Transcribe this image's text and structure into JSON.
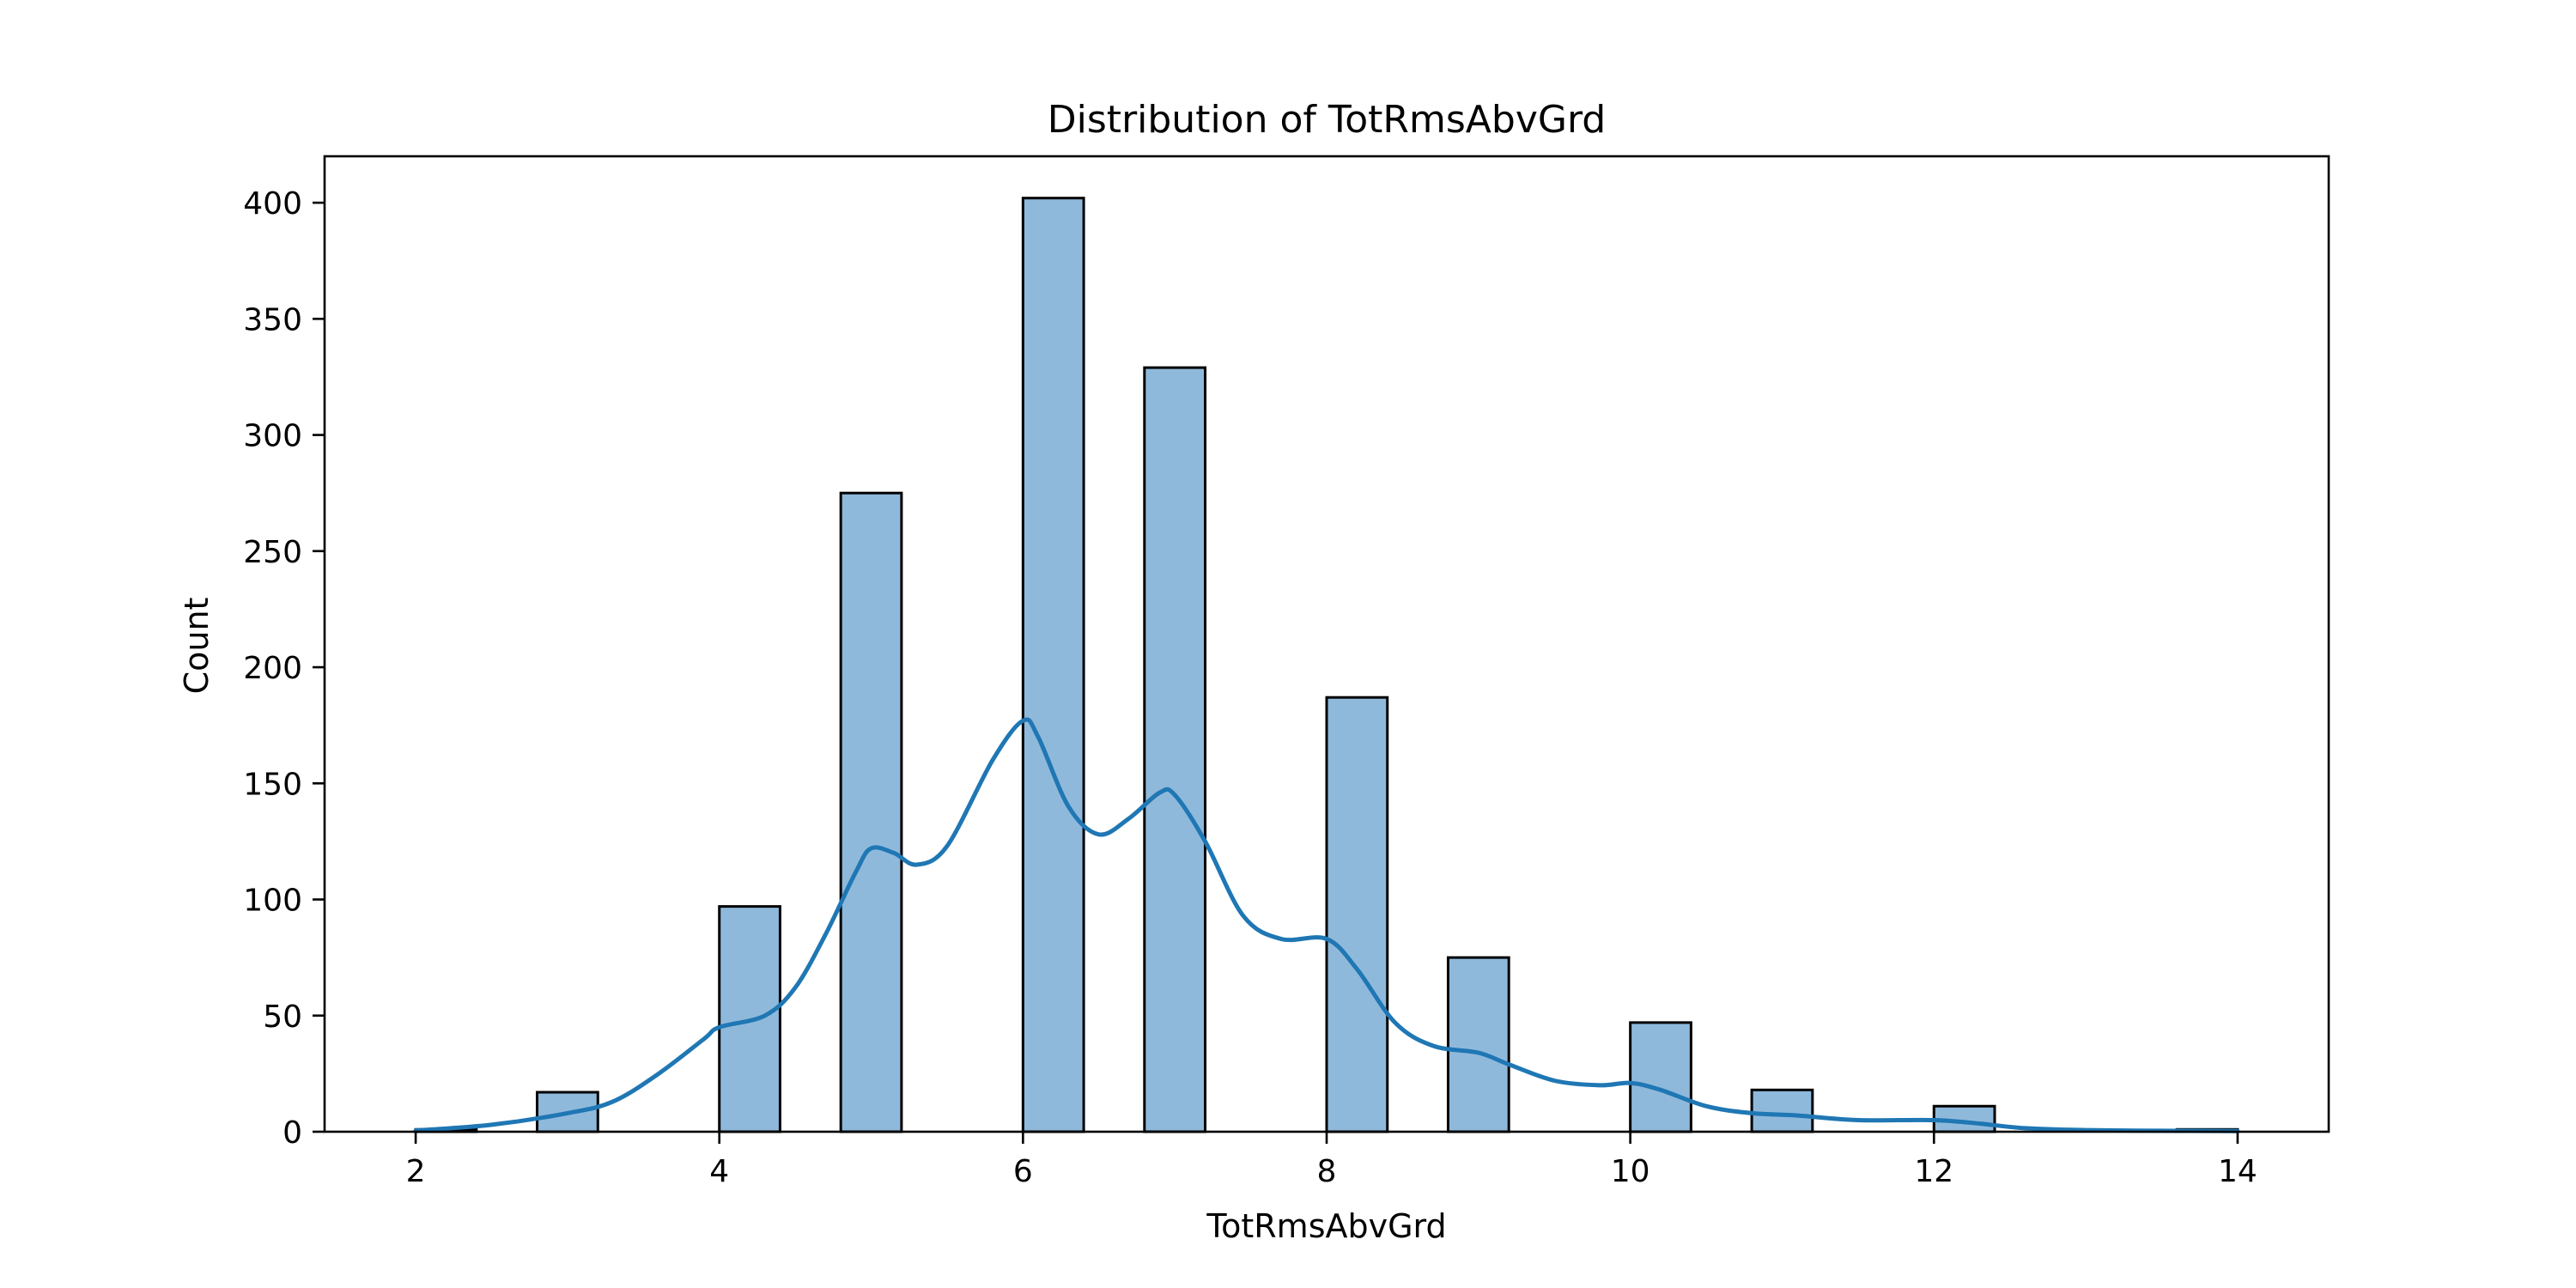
{
  "chart_data": {
    "type": "histogram",
    "title": "Distribution of TotRmsAbvGrd",
    "xlabel": "TotRmsAbvGrd",
    "ylabel": "Count",
    "xlim": [
      1.4,
      14.6
    ],
    "ylim": [
      0,
      420
    ],
    "x_ticks": [
      2,
      4,
      6,
      8,
      10,
      12,
      14
    ],
    "y_ticks": [
      0,
      50,
      100,
      150,
      200,
      250,
      300,
      350,
      400
    ],
    "bin_width": 0.4,
    "bins": [
      {
        "x0": 2.0,
        "x1": 2.4,
        "count": 1
      },
      {
        "x0": 2.8,
        "x1": 3.2,
        "count": 17
      },
      {
        "x0": 4.0,
        "x1": 4.4,
        "count": 97
      },
      {
        "x0": 4.8,
        "x1": 5.2,
        "count": 275
      },
      {
        "x0": 6.0,
        "x1": 6.4,
        "count": 402
      },
      {
        "x0": 6.8,
        "x1": 7.2,
        "count": 329
      },
      {
        "x0": 8.0,
        "x1": 8.4,
        "count": 187
      },
      {
        "x0": 8.8,
        "x1": 9.2,
        "count": 75
      },
      {
        "x0": 10.0,
        "x1": 10.4,
        "count": 47
      },
      {
        "x0": 10.8,
        "x1": 11.2,
        "count": 18
      },
      {
        "x0": 12.0,
        "x1": 12.4,
        "count": 11
      },
      {
        "x0": 13.6,
        "x1": 14.0,
        "count": 1
      }
    ],
    "kde": {
      "x": [
        2.0,
        2.5,
        3.0,
        3.3,
        3.6,
        3.9,
        4.0,
        4.3,
        4.5,
        4.7,
        4.9,
        5.0,
        5.15,
        5.3,
        5.5,
        5.8,
        6.0,
        6.1,
        6.3,
        6.5,
        6.7,
        6.9,
        7.0,
        7.2,
        7.45,
        7.7,
        8.0,
        8.2,
        8.45,
        8.7,
        9.0,
        9.2,
        9.5,
        9.8,
        10.0,
        10.2,
        10.5,
        10.8,
        11.1,
        11.5,
        12.0,
        12.3,
        12.6,
        13.0,
        13.5,
        14.0
      ],
      "y": [
        0.5,
        3,
        8,
        13,
        25,
        40,
        45,
        50,
        62,
        85,
        112,
        122,
        120,
        115,
        123,
        160,
        177,
        170,
        140,
        128,
        135,
        146,
        145,
        125,
        93,
        83,
        83,
        70,
        47,
        37,
        34,
        29,
        22,
        20,
        21,
        18,
        11,
        8,
        7,
        5,
        5,
        3.5,
        1.5,
        0.7,
        0.4,
        0.3
      ]
    },
    "colors": {
      "bar_fill": "#8fb9db",
      "bar_edge": "#000000",
      "kde_line": "#1f77b4",
      "axes": "#000000"
    },
    "grid": false,
    "legend": "none"
  }
}
